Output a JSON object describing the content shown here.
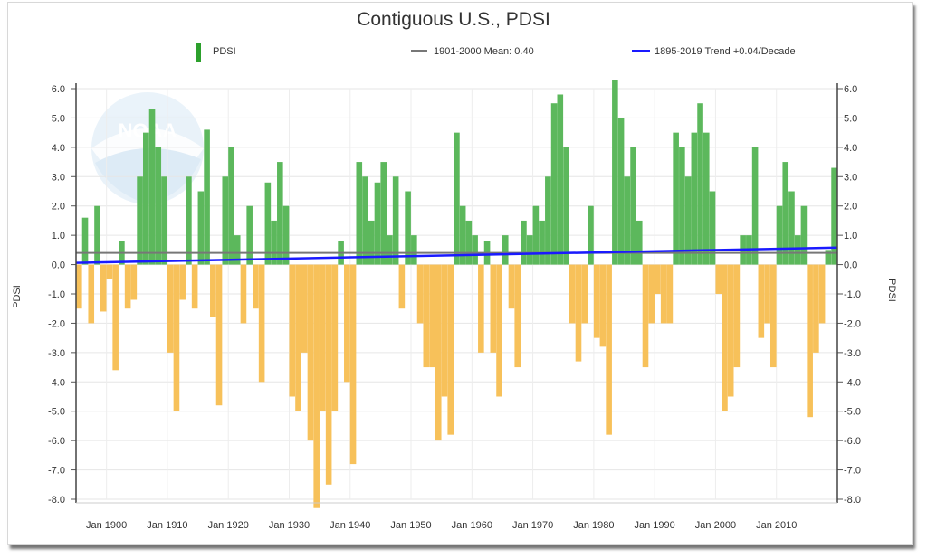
{
  "chart_data": {
    "type": "bar",
    "title": "Contiguous U.S., PDSI",
    "ylabel_left": "PDSI",
    "ylabel_right": "PDSI",
    "ylim": [
      -8.0,
      6.0
    ],
    "yticks": [
      "6.0",
      "5.0",
      "4.0",
      "3.0",
      "2.0",
      "1.0",
      "0.0",
      "-1.0",
      "-2.0",
      "-3.0",
      "-4.0",
      "-5.0",
      "-6.0",
      "-7.0",
      "-8.0"
    ],
    "xticks": [
      "Jan 1900",
      "Jan 1910",
      "Jan 1920",
      "Jan 1930",
      "Jan 1940",
      "Jan 1950",
      "Jan 1960",
      "Jan 1970",
      "Jan 1980",
      "Jan 1990",
      "Jan 2000",
      "Jan 2010"
    ],
    "x_range": [
      1895,
      2019
    ],
    "legend": [
      {
        "name": "PDSI",
        "color": "#2ca02c"
      },
      {
        "name": "1901-2000 Mean: 0.40",
        "color": "#777777"
      },
      {
        "name": "1895-2019 Trend +0.04/Decade",
        "color": "#1a1aff"
      }
    ],
    "positive_color": "#5cb85c",
    "negative_color": "#f7c15a",
    "mean": 0.4,
    "trend": {
      "start": [
        1895,
        0.06
      ],
      "end": [
        2019,
        0.58
      ]
    },
    "series": [
      {
        "name": "PDSI",
        "x": [
          1895,
          1896,
          1897,
          1898,
          1899,
          1900,
          1901,
          1902,
          1903,
          1904,
          1905,
          1906,
          1907,
          1908,
          1909,
          1910,
          1911,
          1912,
          1913,
          1914,
          1915,
          1916,
          1917,
          1918,
          1919,
          1920,
          1921,
          1922,
          1923,
          1924,
          1925,
          1926,
          1927,
          1928,
          1929,
          1930,
          1931,
          1932,
          1933,
          1934,
          1935,
          1936,
          1937,
          1938,
          1939,
          1940,
          1941,
          1942,
          1943,
          1944,
          1945,
          1946,
          1947,
          1948,
          1949,
          1950,
          1951,
          1952,
          1953,
          1954,
          1955,
          1956,
          1957,
          1958,
          1959,
          1960,
          1961,
          1962,
          1963,
          1964,
          1965,
          1966,
          1967,
          1968,
          1969,
          1970,
          1971,
          1972,
          1973,
          1974,
          1975,
          1976,
          1977,
          1978,
          1979,
          1980,
          1981,
          1982,
          1983,
          1984,
          1985,
          1986,
          1987,
          1988,
          1989,
          1990,
          1991,
          1992,
          1993,
          1994,
          1995,
          1996,
          1997,
          1998,
          1999,
          2000,
          2001,
          2002,
          2003,
          2004,
          2005,
          2006,
          2007,
          2008,
          2009,
          2010,
          2011,
          2012,
          2013,
          2014,
          2015,
          2016,
          2017,
          2018,
          2019
        ],
        "values": [
          -1.5,
          1.6,
          -2.0,
          2.0,
          -1.6,
          -0.5,
          -3.6,
          0.8,
          -1.5,
          -1.2,
          3.0,
          4.5,
          5.3,
          4.0,
          3.0,
          -3.0,
          -5.0,
          -1.2,
          3.0,
          -1.5,
          2.5,
          4.6,
          -1.8,
          -4.8,
          3.0,
          4.0,
          1.0,
          -2.0,
          2.0,
          -1.5,
          -4.0,
          2.8,
          1.5,
          3.5,
          2.0,
          -4.5,
          -5.0,
          -3.0,
          -6.0,
          -8.3,
          -5.0,
          -7.5,
          -5.0,
          0.8,
          -4.0,
          -6.8,
          3.5,
          3.0,
          1.5,
          2.8,
          3.5,
          1.0,
          3.0,
          -1.5,
          2.5,
          1.0,
          -2.0,
          -3.5,
          -3.5,
          -6.0,
          -4.5,
          -5.8,
          4.5,
          2.0,
          1.5,
          1.0,
          -3.0,
          0.8,
          -3.0,
          -4.5,
          1.0,
          -1.5,
          -3.5,
          1.5,
          1.0,
          2.0,
          1.5,
          3.0,
          5.5,
          5.8,
          4.0,
          -2.0,
          -3.3,
          -2.0,
          2.0,
          -2.5,
          -2.8,
          -5.8,
          6.3,
          5.0,
          3.0,
          4.0,
          1.5,
          -3.5,
          -2.0,
          -1.0,
          -2.0,
          -2.0,
          4.5,
          4.0,
          3.0,
          4.5,
          5.5,
          4.5,
          2.5,
          -1.0,
          -5.0,
          -4.5,
          -3.5,
          1.0,
          1.0,
          4.0,
          -2.5,
          -2.0,
          -3.5,
          2.0,
          3.5,
          2.5,
          1.0,
          2.0,
          -5.2,
          -3.0,
          -2.0,
          0.5,
          3.3
        ]
      }
    ]
  },
  "logo_text": "NOAA"
}
